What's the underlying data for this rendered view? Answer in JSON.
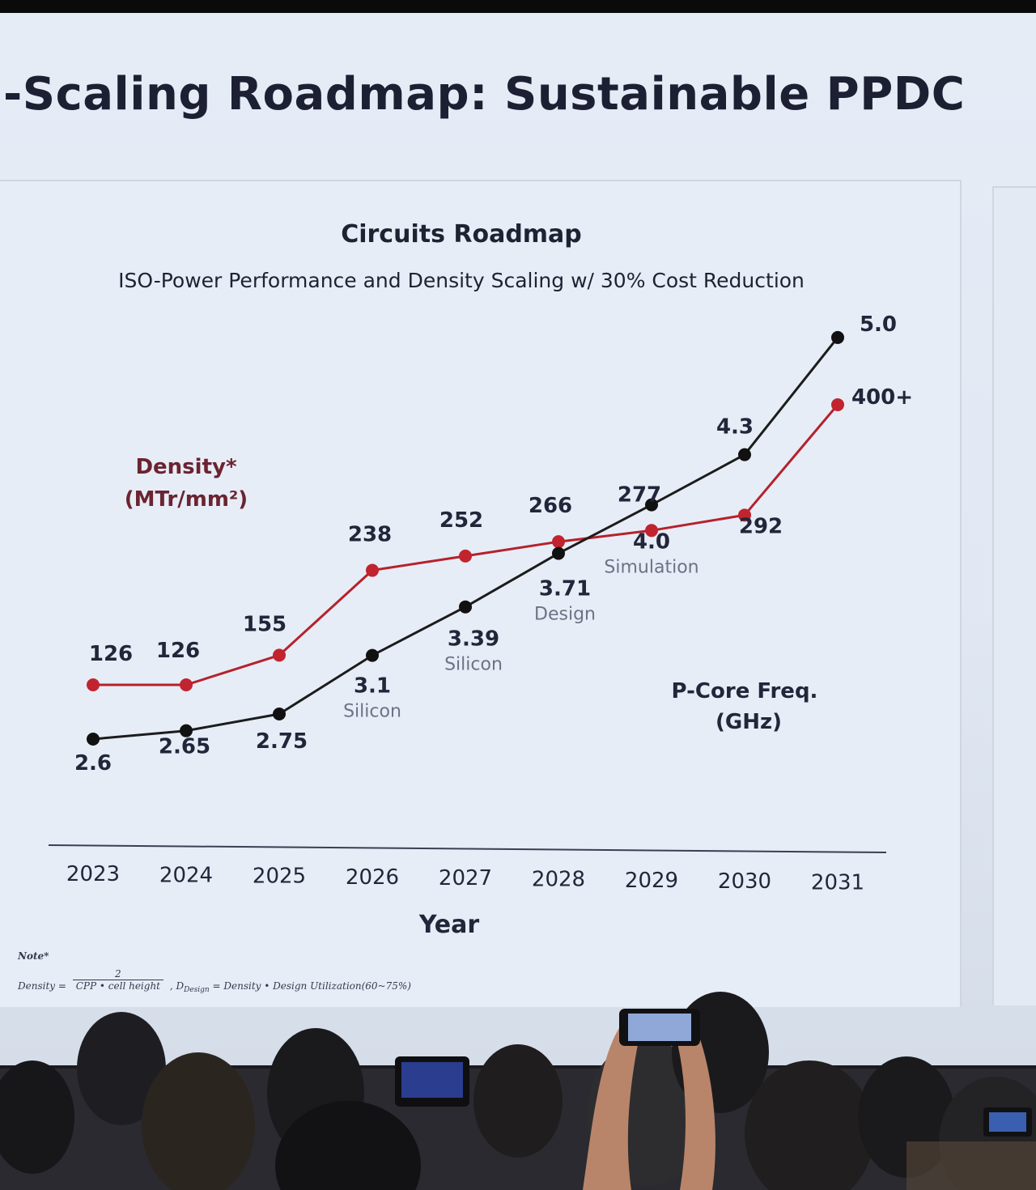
{
  "slide": {
    "title": "-Scaling Roadmap: Sustainable PPDC"
  },
  "note": {
    "label": "Note*",
    "formula_lhs": "Density =",
    "formula_num": "2",
    "formula_den": "CPP • cell height",
    "formula_rest": ", D",
    "formula_sub": "Design",
    "formula_tail": " = Density • Design Utilization(60~75%)"
  },
  "chart_data": {
    "type": "line",
    "title": "Circuits Roadmap",
    "subtitle": "ISO-Power Performance and Density Scaling w/ 30% Cost Reduction",
    "xlabel": "Year",
    "categories": [
      "2023",
      "2024",
      "2025",
      "2026",
      "2027",
      "2028",
      "2029",
      "2030",
      "2031"
    ],
    "grid": false,
    "legend": "none",
    "series": [
      {
        "name": "Density* (MTr/mm²)",
        "name_line1": "Density*",
        "name_line2": "(MTr/mm²)",
        "color": "#b5222b",
        "marker_color": "#c1242e",
        "values": [
          126,
          126,
          155,
          238,
          252,
          266,
          277,
          292,
          400
        ],
        "labels": [
          "126",
          "126",
          "155",
          "238",
          "252",
          "266",
          "277",
          "292",
          "400+"
        ],
        "ylim": [
          60,
          420
        ]
      },
      {
        "name": "P-Core Freq. (GHz)",
        "name_line1": "P-Core Freq.",
        "name_line2": "(GHz)",
        "color": "#1c1c1c",
        "marker_color": "#111111",
        "values": [
          2.6,
          2.65,
          2.75,
          3.1,
          3.39,
          3.71,
          4.0,
          4.3,
          5.0
        ],
        "labels": [
          "2.6",
          "2.65",
          "2.75",
          "3.1",
          "3.39",
          "3.71",
          "4.0",
          "4.3",
          "5.0"
        ],
        "annotations": [
          "",
          "",
          "",
          "Silicon",
          "Silicon",
          "Design",
          "Simulation",
          "",
          ""
        ],
        "ylim": [
          2.0,
          5.0
        ]
      }
    ]
  }
}
